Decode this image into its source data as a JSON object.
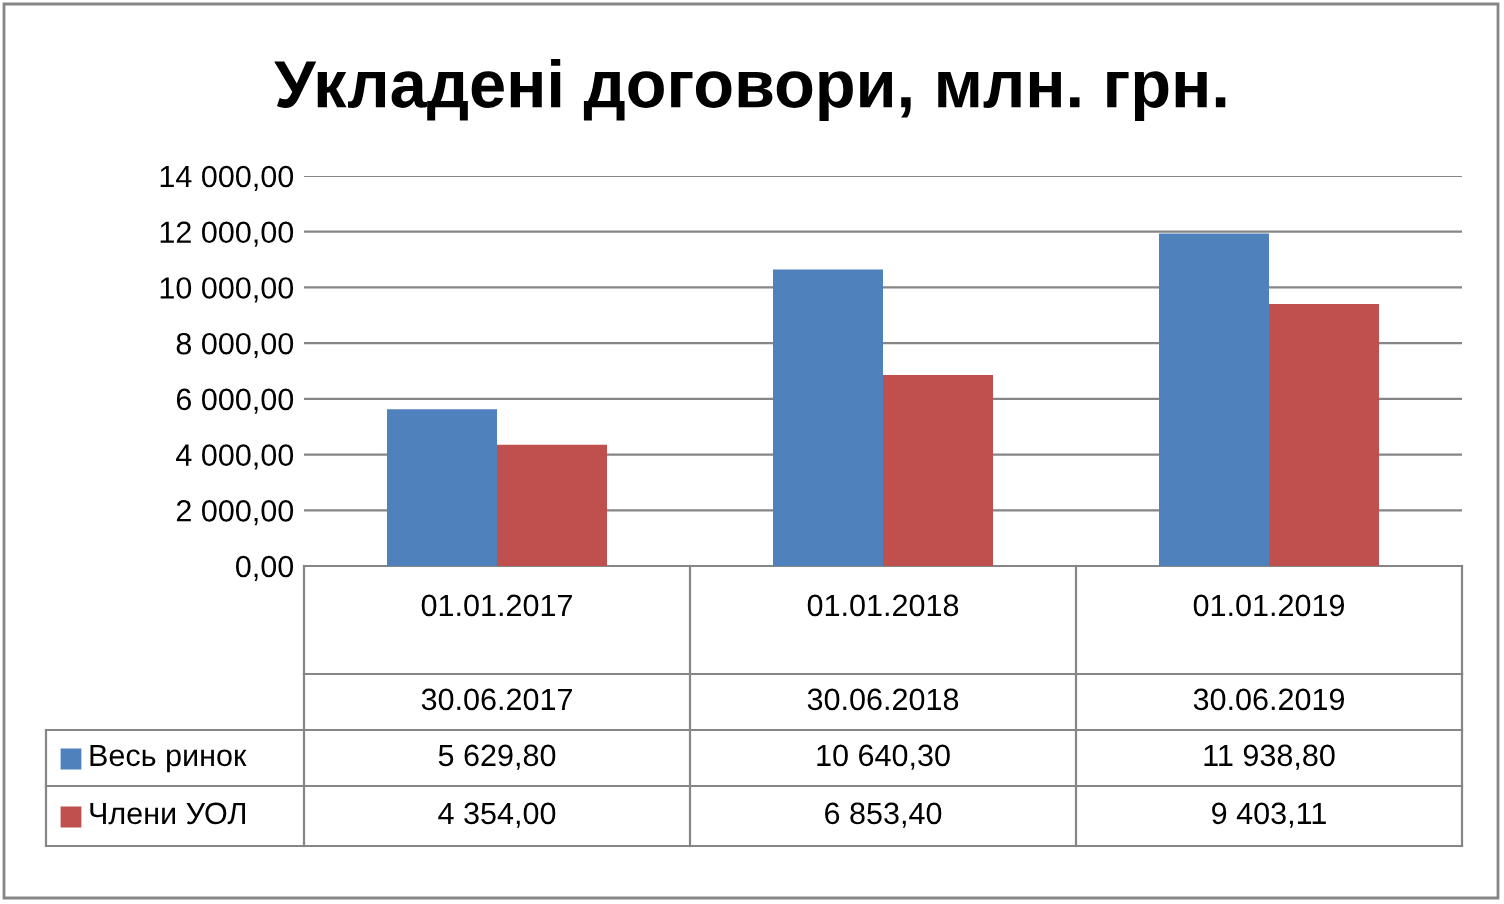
{
  "chart_data": {
    "type": "bar",
    "title": "Укладені договори, млн. грн.",
    "categories": [
      "01.01.2017",
      "01.01.2018",
      "01.01.2019"
    ],
    "series": [
      {
        "name": "Весь ринок",
        "color": "#4f81bd",
        "values": [
          5629.8,
          10640.3,
          11938.8
        ],
        "value_labels": [
          "5 629,80",
          "10 640,30",
          "11 938,80"
        ]
      },
      {
        "name": "Члени УОЛ",
        "color": "#c0504d",
        "values": [
          4354.0,
          6853.4,
          9403.11
        ],
        "value_labels": [
          "4 354,00",
          "6 853,40",
          "9 403,11"
        ]
      }
    ],
    "annotations": [
      "30.06.2017",
      "30.06.2018",
      "30.06.2019"
    ],
    "ylim": [
      0,
      14000
    ],
    "yticks": [
      {
        "value": 0,
        "label": "0,00"
      },
      {
        "value": 2000,
        "label": "2 000,00"
      },
      {
        "value": 4000,
        "label": "4 000,00"
      },
      {
        "value": 6000,
        "label": "6 000,00"
      },
      {
        "value": 8000,
        "label": "8 000,00"
      },
      {
        "value": 10000,
        "label": "10 000,00"
      },
      {
        "value": 12000,
        "label": "12 000,00"
      },
      {
        "value": 14000,
        "label": "14 000,00"
      }
    ],
    "grid": "y",
    "legend": "bottom"
  }
}
